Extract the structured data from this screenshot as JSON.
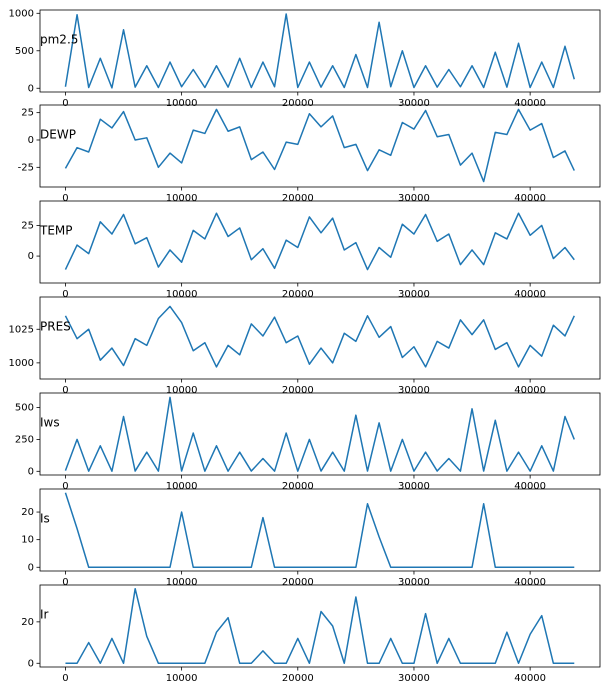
{
  "chart_data": [
    {
      "type": "line",
      "ylabel": "pm2.5",
      "color": "#1f77b4",
      "x": [
        0,
        1000,
        2000,
        3000,
        4000,
        5000,
        6000,
        7000,
        8000,
        9000,
        10000,
        11000,
        12000,
        13000,
        14000,
        15000,
        16000,
        17000,
        18000,
        19000,
        20000,
        21000,
        22000,
        23000,
        24000,
        25000,
        26000,
        27000,
        28000,
        29000,
        30000,
        31000,
        32000,
        33000,
        34000,
        35000,
        36000,
        37000,
        38000,
        39000,
        40000,
        41000,
        42000,
        43000,
        43800
      ],
      "values": [
        20,
        980,
        10,
        400,
        5,
        780,
        15,
        300,
        10,
        350,
        20,
        250,
        10,
        300,
        15,
        400,
        10,
        350,
        20,
        990,
        10,
        350,
        15,
        300,
        10,
        450,
        10,
        880,
        20,
        500,
        10,
        300,
        15,
        250,
        20,
        300,
        10,
        480,
        15,
        600,
        10,
        350,
        10,
        560,
        120
      ],
      "xlim": [
        -2191,
        46014
      ],
      "ylim": [
        -50,
        1044
      ],
      "xticks": [
        0,
        10000,
        20000,
        30000,
        40000
      ],
      "yticks": [
        0,
        500,
        1000
      ]
    },
    {
      "type": "line",
      "ylabel": "DEWP",
      "color": "#1f77b4",
      "x": [
        0,
        1000,
        2000,
        3000,
        4000,
        5000,
        6000,
        7000,
        8000,
        9000,
        10000,
        11000,
        12000,
        13000,
        14000,
        15000,
        16000,
        17000,
        18000,
        19000,
        20000,
        21000,
        22000,
        23000,
        24000,
        25000,
        26000,
        27000,
        28000,
        29000,
        30000,
        31000,
        32000,
        33000,
        34000,
        35000,
        36000,
        37000,
        38000,
        39000,
        40000,
        41000,
        42000,
        43000,
        43800
      ],
      "values": [
        -26,
        -7,
        -11,
        19,
        11,
        26,
        0,
        2,
        -25,
        -12,
        -21,
        9,
        6,
        28,
        8,
        12,
        -18,
        -11,
        -27,
        -2,
        -4,
        24,
        12,
        22,
        -7,
        -4,
        -28,
        -9,
        -14,
        16,
        10,
        27,
        3,
        5,
        -23,
        -12,
        -38,
        7,
        5,
        28,
        9,
        15,
        -16,
        -10,
        -28
      ],
      "xlim": [
        -2191,
        46014
      ],
      "ylim": [
        -43,
        32
      ],
      "xticks": [
        0,
        10000,
        20000,
        30000,
        40000
      ],
      "yticks": [
        -25,
        0,
        25
      ]
    },
    {
      "type": "line",
      "ylabel": "TEMP",
      "color": "#1f77b4",
      "x": [
        0,
        1000,
        2000,
        3000,
        4000,
        5000,
        6000,
        7000,
        8000,
        9000,
        10000,
        11000,
        12000,
        13000,
        14000,
        15000,
        16000,
        17000,
        18000,
        19000,
        20000,
        21000,
        22000,
        23000,
        24000,
        25000,
        26000,
        27000,
        28000,
        29000,
        30000,
        31000,
        32000,
        33000,
        34000,
        35000,
        36000,
        37000,
        38000,
        39000,
        40000,
        41000,
        42000,
        43000,
        43800
      ],
      "values": [
        -11,
        9,
        2,
        28,
        18,
        34,
        10,
        15,
        -9,
        5,
        -5,
        21,
        14,
        35,
        16,
        23,
        -3,
        6,
        -10,
        13,
        7,
        32,
        19,
        31,
        5,
        11,
        -11,
        7,
        -1,
        26,
        18,
        34,
        12,
        18,
        -7,
        5,
        -7,
        19,
        14,
        35,
        17,
        25,
        -2,
        7,
        -3
      ],
      "xlim": [
        -2191,
        46014
      ],
      "ylim": [
        -22,
        45
      ],
      "xticks": [
        0,
        10000,
        20000,
        30000,
        40000
      ],
      "yticks": [
        0,
        25
      ]
    },
    {
      "type": "line",
      "ylabel": "PRES",
      "color": "#1f77b4",
      "x": [
        0,
        1000,
        2000,
        3000,
        4000,
        5000,
        6000,
        7000,
        8000,
        9000,
        10000,
        11000,
        12000,
        13000,
        14000,
        15000,
        16000,
        17000,
        18000,
        19000,
        20000,
        21000,
        22000,
        23000,
        24000,
        25000,
        26000,
        27000,
        28000,
        29000,
        30000,
        31000,
        32000,
        33000,
        34000,
        35000,
        36000,
        37000,
        38000,
        39000,
        40000,
        41000,
        42000,
        43000,
        43800
      ],
      "values": [
        1035,
        1018,
        1025,
        1002,
        1011,
        998,
        1018,
        1013,
        1033,
        1042,
        1030,
        1009,
        1015,
        997,
        1013,
        1006,
        1029,
        1020,
        1034,
        1015,
        1020,
        999,
        1011,
        1000,
        1022,
        1016,
        1035,
        1019,
        1027,
        1004,
        1012,
        997,
        1016,
        1011,
        1032,
        1021,
        1032,
        1010,
        1015,
        997,
        1013,
        1005,
        1028,
        1020,
        1035
      ],
      "xlim": [
        -2191,
        46014
      ],
      "ylim": [
        988,
        1049
      ],
      "xticks": [
        0,
        10000,
        20000,
        30000,
        40000
      ],
      "yticks": [
        1000,
        1025
      ]
    },
    {
      "type": "line",
      "ylabel": "Iws",
      "color": "#1f77b4",
      "x": [
        0,
        1000,
        2000,
        3000,
        4000,
        5000,
        6000,
        7000,
        8000,
        9000,
        10000,
        11000,
        12000,
        13000,
        14000,
        15000,
        16000,
        17000,
        18000,
        19000,
        20000,
        21000,
        22000,
        23000,
        24000,
        25000,
        26000,
        27000,
        28000,
        29000,
        30000,
        31000,
        32000,
        33000,
        34000,
        35000,
        36000,
        37000,
        38000,
        39000,
        40000,
        41000,
        42000,
        43000,
        43800
      ],
      "values": [
        5,
        250,
        1,
        200,
        1,
        430,
        2,
        150,
        1,
        580,
        2,
        300,
        1,
        200,
        1,
        150,
        2,
        100,
        1,
        300,
        1,
        250,
        2,
        150,
        1,
        440,
        2,
        380,
        1,
        250,
        1,
        150,
        2,
        100,
        1,
        490,
        2,
        400,
        1,
        150,
        1,
        200,
        2,
        430,
        250
      ],
      "xlim": [
        -2191,
        46014
      ],
      "ylim": [
        -29,
        614
      ],
      "xticks": [
        0,
        10000,
        20000,
        30000,
        40000
      ],
      "yticks": [
        0,
        250,
        500
      ]
    },
    {
      "type": "line",
      "ylabel": "Is",
      "color": "#1f77b4",
      "x": [
        0,
        1000,
        2000,
        3000,
        4000,
        5000,
        6000,
        7000,
        8000,
        9000,
        10000,
        11000,
        12000,
        13000,
        14000,
        15000,
        16000,
        17000,
        18000,
        19000,
        20000,
        21000,
        22000,
        23000,
        24000,
        25000,
        26000,
        27000,
        28000,
        29000,
        30000,
        31000,
        32000,
        33000,
        34000,
        35000,
        36000,
        37000,
        38000,
        39000,
        40000,
        41000,
        42000,
        43000,
        43800
      ],
      "values": [
        27,
        14,
        0,
        0,
        0,
        0,
        0,
        0,
        0,
        0,
        20,
        0,
        0,
        0,
        0,
        0,
        0,
        18,
        0,
        0,
        0,
        0,
        0,
        0,
        0,
        0,
        23,
        11,
        0,
        0,
        0,
        0,
        0,
        0,
        0,
        0,
        23,
        0,
        0,
        0,
        0,
        0,
        0,
        0,
        0
      ],
      "xlim": [
        -2191,
        46014
      ],
      "ylim": [
        -1.35,
        28.35
      ],
      "xticks": [
        0,
        10000,
        20000,
        30000,
        40000
      ],
      "yticks": [
        0,
        10,
        20
      ]
    },
    {
      "type": "line",
      "ylabel": "Ir",
      "color": "#1f77b4",
      "x": [
        0,
        1000,
        2000,
        3000,
        4000,
        5000,
        6000,
        7000,
        8000,
        9000,
        10000,
        11000,
        12000,
        13000,
        14000,
        15000,
        16000,
        17000,
        18000,
        19000,
        20000,
        21000,
        22000,
        23000,
        24000,
        25000,
        26000,
        27000,
        28000,
        29000,
        30000,
        31000,
        32000,
        33000,
        34000,
        35000,
        36000,
        37000,
        38000,
        39000,
        40000,
        41000,
        42000,
        43000,
        43800
      ],
      "values": [
        0,
        0,
        10,
        0,
        12,
        0,
        36,
        13,
        0,
        0,
        0,
        0,
        0,
        15,
        22,
        0,
        0,
        6,
        0,
        0,
        12,
        0,
        25,
        18,
        0,
        32,
        0,
        0,
        12,
        0,
        0,
        24,
        0,
        12,
        0,
        0,
        0,
        0,
        15,
        0,
        14,
        23,
        0,
        0,
        0
      ],
      "xlim": [
        -2191,
        46014
      ],
      "ylim": [
        -1.8,
        37.8
      ],
      "xticks": [
        0,
        10000,
        20000,
        30000,
        40000
      ],
      "yticks": [
        0,
        20
      ]
    }
  ]
}
